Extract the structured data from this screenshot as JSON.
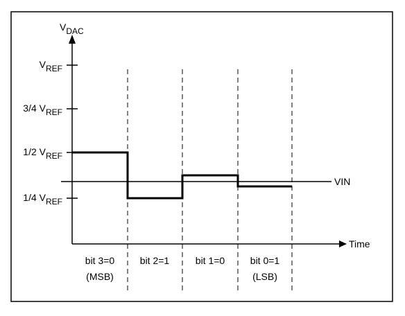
{
  "diagram": {
    "axis_y_label": {
      "main": "V",
      "sub": "DAC"
    },
    "axis_x_label": "Time",
    "y_ticks": [
      {
        "prefix": "V",
        "sub": "REF"
      },
      {
        "prefix": "3/4 V",
        "sub": "REF"
      },
      {
        "prefix": "1/2 V",
        "sub": "REF"
      },
      {
        "prefix": "1/4 V",
        "sub": "REF"
      }
    ],
    "vin_label": "VIN",
    "bit_labels": [
      {
        "line1": "bit 3=0",
        "line2": "(MSB)"
      },
      {
        "line1": "bit 2=1",
        "line2": ""
      },
      {
        "line1": "bit 1=0",
        "line2": ""
      },
      {
        "line1": "bit 0=1",
        "line2": "(LSB)"
      }
    ],
    "dac_levels_fraction_of_vref": [
      0.5,
      0.25,
      0.375,
      0.3125
    ],
    "vin_level_fraction_of_vref": 0.34
  }
}
